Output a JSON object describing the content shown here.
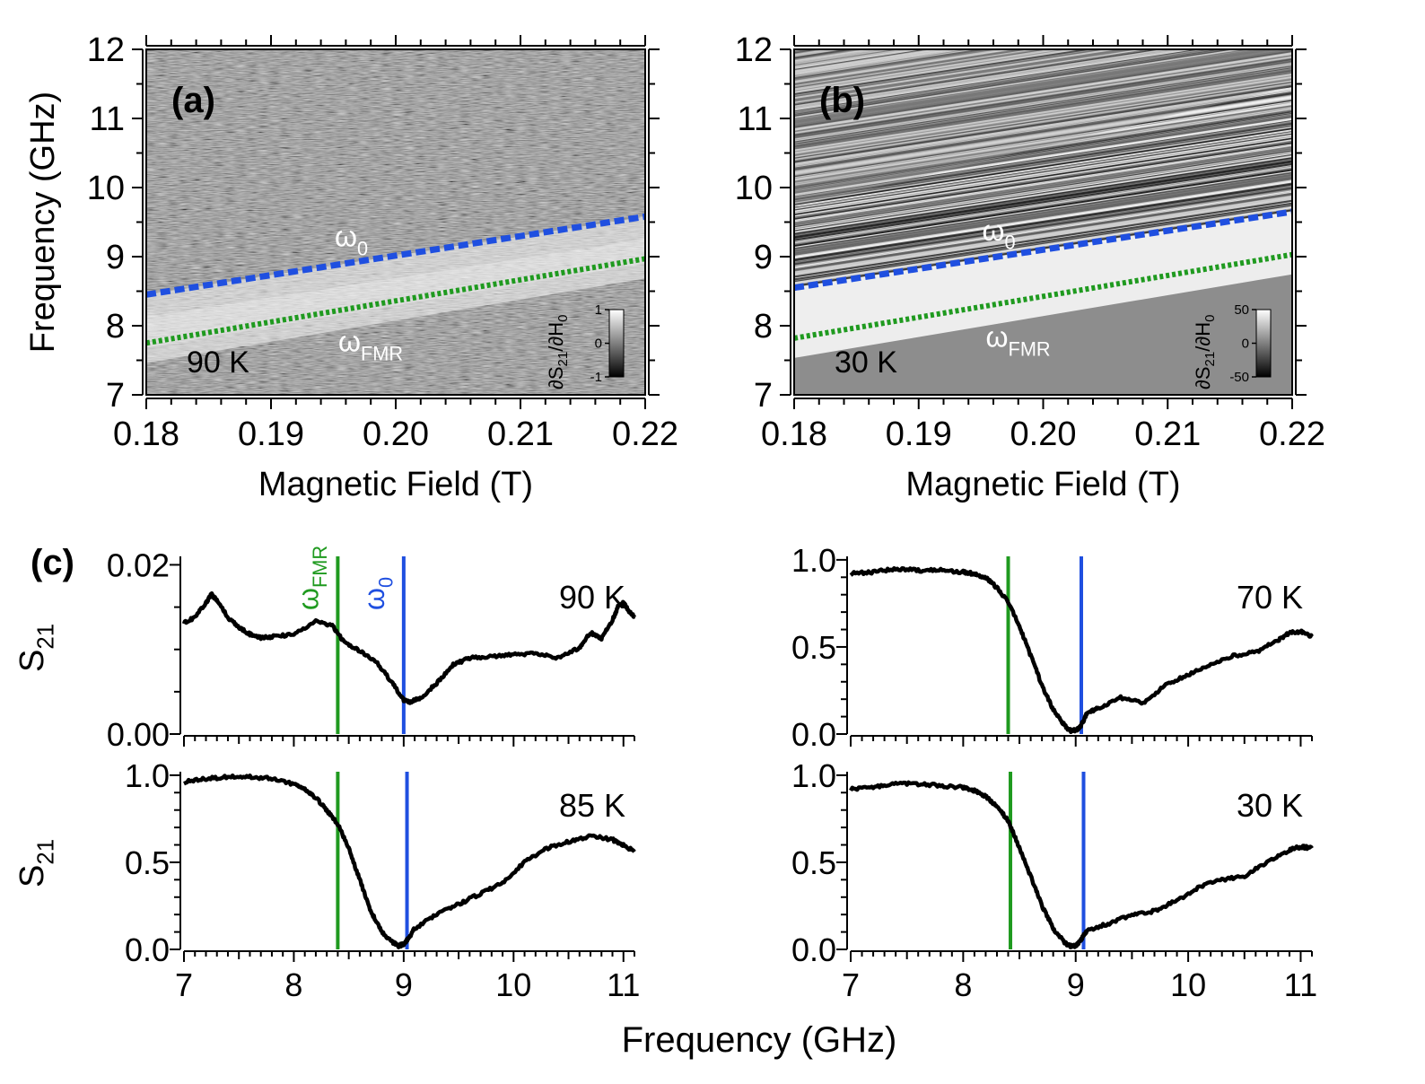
{
  "figure": {
    "common_xlabel_bottom": "Frequency (GHz)"
  },
  "chart_data": [
    {
      "id": "a",
      "type": "heatmap",
      "panel_label": "(a)",
      "temperature_label": "90 K",
      "xlabel": "Magnetic Field (T)",
      "ylabel": "Frequency (GHz)",
      "xlim": [
        0.18,
        0.22
      ],
      "ylim": [
        7,
        12
      ],
      "xticks": [
        "0.18",
        "0.19",
        "0.20",
        "0.21",
        "0.22"
      ],
      "yticks": [
        "7",
        "8",
        "9",
        "10",
        "11",
        "12"
      ],
      "band_brightness": "moderate",
      "upper_texture": "noise",
      "lines": [
        {
          "name": "ω0",
          "main": "ω",
          "sub": "0",
          "color": "#1f4fe0",
          "style": "dashed",
          "x": [
            0.18,
            0.22
          ],
          "y": [
            8.45,
            9.58
          ]
        },
        {
          "name": "ωFMR",
          "main": "ω",
          "sub": "FMR",
          "color": "#1f9a1f",
          "style": "dotted",
          "x": [
            0.18,
            0.22
          ],
          "y": [
            7.75,
            8.97
          ]
        }
      ],
      "colorbar": {
        "label_main": "∂S",
        "label_sub1": "21",
        "label_mid": "/∂H",
        "label_sub2": "0",
        "ticks": [
          "1",
          "0",
          "-1"
        ]
      }
    },
    {
      "id": "b",
      "type": "heatmap",
      "panel_label": "(b)",
      "temperature_label": "30 K",
      "xlabel": "Magnetic Field (T)",
      "ylabel": "",
      "xlim": [
        0.18,
        0.22
      ],
      "ylim": [
        7,
        12
      ],
      "xticks": [
        "0.18",
        "0.19",
        "0.20",
        "0.21",
        "0.22"
      ],
      "yticks": [
        "7",
        "8",
        "9",
        "10",
        "11",
        "12"
      ],
      "band_brightness": "strong",
      "upper_texture": "stripes",
      "lines": [
        {
          "name": "ω0",
          "main": "ω",
          "sub": "0",
          "color": "#1f4fe0",
          "style": "dashed",
          "x": [
            0.18,
            0.22
          ],
          "y": [
            8.55,
            9.65
          ]
        },
        {
          "name": "ωFMR",
          "main": "ω",
          "sub": "FMR",
          "color": "#1f9a1f",
          "style": "dotted",
          "x": [
            0.18,
            0.22
          ],
          "y": [
            7.82,
            9.03
          ]
        }
      ],
      "colorbar": {
        "label_main": "∂S",
        "label_sub1": "21",
        "label_mid": "/∂H",
        "label_sub2": "0",
        "ticks": [
          "50",
          "0",
          "-50"
        ]
      }
    },
    {
      "id": "c1",
      "type": "line",
      "panel_label": "(c)",
      "temperature_label": "90 K",
      "ylabel_main": "S",
      "ylabel_sub": "21",
      "xlim": [
        7,
        11.1
      ],
      "ylim": [
        0,
        0.02
      ],
      "yticks": [
        0.0,
        0.02
      ],
      "ytick_labels": [
        "0.00",
        "0.02"
      ],
      "xticks": [
        7,
        8,
        9,
        10,
        11
      ],
      "xtick_labels": [],
      "vlines": [
        {
          "name": "ωFMR",
          "main": "ω",
          "sub": "FMR",
          "x": 8.4,
          "color": "#1f9a1f"
        },
        {
          "name": "ω0",
          "main": "ω",
          "sub": "0",
          "x": 9.0,
          "color": "#1f4fe0"
        }
      ],
      "series": [
        {
          "name": "S21",
          "color": "#000000",
          "x": [
            7.0,
            7.1,
            7.2,
            7.25,
            7.3,
            7.4,
            7.5,
            7.6,
            7.7,
            7.8,
            8.0,
            8.2,
            8.35,
            8.45,
            8.6,
            8.75,
            8.9,
            9.0,
            9.05,
            9.15,
            9.3,
            9.45,
            9.6,
            9.8,
            10.0,
            10.2,
            10.4,
            10.6,
            10.7,
            10.8,
            10.9,
            10.95,
            11.0,
            11.05,
            11.1
          ],
          "y": [
            0.0132,
            0.0138,
            0.0155,
            0.0165,
            0.0158,
            0.0138,
            0.0126,
            0.0118,
            0.0114,
            0.0115,
            0.0118,
            0.0133,
            0.0128,
            0.011,
            0.0098,
            0.0085,
            0.006,
            0.004,
            0.0038,
            0.0042,
            0.006,
            0.0082,
            0.009,
            0.0092,
            0.0094,
            0.0095,
            0.009,
            0.0102,
            0.012,
            0.0113,
            0.0135,
            0.015,
            0.0155,
            0.0145,
            0.0138
          ]
        }
      ]
    },
    {
      "id": "c2",
      "type": "line",
      "panel_label": "",
      "temperature_label": "70 K",
      "ylabel_main": "",
      "ylabel_sub": "",
      "xlim": [
        7,
        11.1
      ],
      "ylim": [
        0,
        1.0
      ],
      "yticks": [
        0.0,
        0.5,
        1.0
      ],
      "ytick_labels": [
        "0.0",
        "0.5",
        "1.0"
      ],
      "xticks": [
        7,
        8,
        9,
        10,
        11
      ],
      "xtick_labels": [],
      "vlines": [
        {
          "name": "ωFMR",
          "main": "",
          "sub": "",
          "x": 8.4,
          "color": "#1f9a1f"
        },
        {
          "name": "ω0",
          "main": "",
          "sub": "",
          "x": 9.05,
          "color": "#1f4fe0"
        }
      ],
      "series": [
        {
          "name": "S21",
          "color": "#000000",
          "x": [
            7.0,
            7.2,
            7.4,
            7.6,
            7.8,
            8.0,
            8.1,
            8.2,
            8.3,
            8.4,
            8.5,
            8.6,
            8.7,
            8.8,
            8.9,
            8.95,
            9.0,
            9.05,
            9.1,
            9.2,
            9.4,
            9.6,
            9.8,
            10.0,
            10.2,
            10.4,
            10.6,
            10.8,
            10.9,
            11.0,
            11.1
          ],
          "y": [
            0.92,
            0.93,
            0.95,
            0.94,
            0.94,
            0.93,
            0.92,
            0.9,
            0.84,
            0.76,
            0.62,
            0.45,
            0.28,
            0.14,
            0.05,
            0.02,
            0.02,
            0.05,
            0.12,
            0.15,
            0.21,
            0.18,
            0.28,
            0.34,
            0.4,
            0.45,
            0.47,
            0.54,
            0.58,
            0.59,
            0.56
          ]
        }
      ]
    },
    {
      "id": "c3",
      "type": "line",
      "panel_label": "",
      "temperature_label": "85 K",
      "ylabel_main": "S",
      "ylabel_sub": "21",
      "xlim": [
        7,
        11.1
      ],
      "ylim": [
        0,
        1.0
      ],
      "yticks": [
        0.0,
        0.5,
        1.0
      ],
      "ytick_labels": [
        "0.0",
        "0.5",
        "1.0"
      ],
      "xticks": [
        7,
        8,
        9,
        10,
        11
      ],
      "xtick_labels": [
        "7",
        "8",
        "9",
        "10",
        "11"
      ],
      "vlines": [
        {
          "name": "ωFMR",
          "main": "",
          "sub": "",
          "x": 8.4,
          "color": "#1f9a1f"
        },
        {
          "name": "ω0",
          "main": "",
          "sub": "",
          "x": 9.03,
          "color": "#1f4fe0"
        }
      ],
      "series": [
        {
          "name": "S21",
          "color": "#000000",
          "x": [
            7.0,
            7.2,
            7.4,
            7.6,
            7.8,
            8.0,
            8.1,
            8.2,
            8.3,
            8.4,
            8.5,
            8.6,
            8.7,
            8.8,
            8.9,
            8.95,
            9.0,
            9.05,
            9.1,
            9.3,
            9.5,
            9.7,
            9.9,
            10.1,
            10.3,
            10.5,
            10.7,
            10.9,
            11.0,
            11.1
          ],
          "y": [
            0.96,
            0.98,
            0.99,
            0.99,
            0.98,
            0.95,
            0.92,
            0.87,
            0.8,
            0.72,
            0.58,
            0.4,
            0.22,
            0.1,
            0.04,
            0.02,
            0.03,
            0.07,
            0.12,
            0.2,
            0.26,
            0.32,
            0.38,
            0.5,
            0.58,
            0.62,
            0.65,
            0.63,
            0.6,
            0.56
          ]
        }
      ]
    },
    {
      "id": "c4",
      "type": "line",
      "panel_label": "",
      "temperature_label": "30 K",
      "ylabel_main": "",
      "ylabel_sub": "",
      "xlim": [
        7,
        11.1
      ],
      "ylim": [
        0,
        1.0
      ],
      "yticks": [
        0.0,
        0.5,
        1.0
      ],
      "ytick_labels": [
        "0.0",
        "0.5",
        "1.0"
      ],
      "xticks": [
        7,
        8,
        9,
        10,
        11
      ],
      "xtick_labels": [
        "7",
        "8",
        "9",
        "10",
        "11"
      ],
      "vlines": [
        {
          "name": "ωFMR",
          "main": "",
          "sub": "",
          "x": 8.42,
          "color": "#1f9a1f"
        },
        {
          "name": "ω0",
          "main": "",
          "sub": "",
          "x": 9.07,
          "color": "#1f4fe0"
        }
      ],
      "series": [
        {
          "name": "S21",
          "color": "#000000",
          "x": [
            7.0,
            7.2,
            7.4,
            7.6,
            7.8,
            8.0,
            8.1,
            8.2,
            8.3,
            8.4,
            8.5,
            8.6,
            8.7,
            8.8,
            8.9,
            8.95,
            9.0,
            9.05,
            9.1,
            9.3,
            9.5,
            9.7,
            9.9,
            10.1,
            10.3,
            10.5,
            10.7,
            10.9,
            11.0,
            11.1
          ],
          "y": [
            0.92,
            0.93,
            0.95,
            0.95,
            0.94,
            0.93,
            0.91,
            0.88,
            0.82,
            0.74,
            0.58,
            0.42,
            0.25,
            0.12,
            0.04,
            0.02,
            0.02,
            0.06,
            0.11,
            0.15,
            0.2,
            0.22,
            0.28,
            0.36,
            0.4,
            0.42,
            0.5,
            0.57,
            0.59,
            0.58
          ]
        }
      ]
    }
  ]
}
